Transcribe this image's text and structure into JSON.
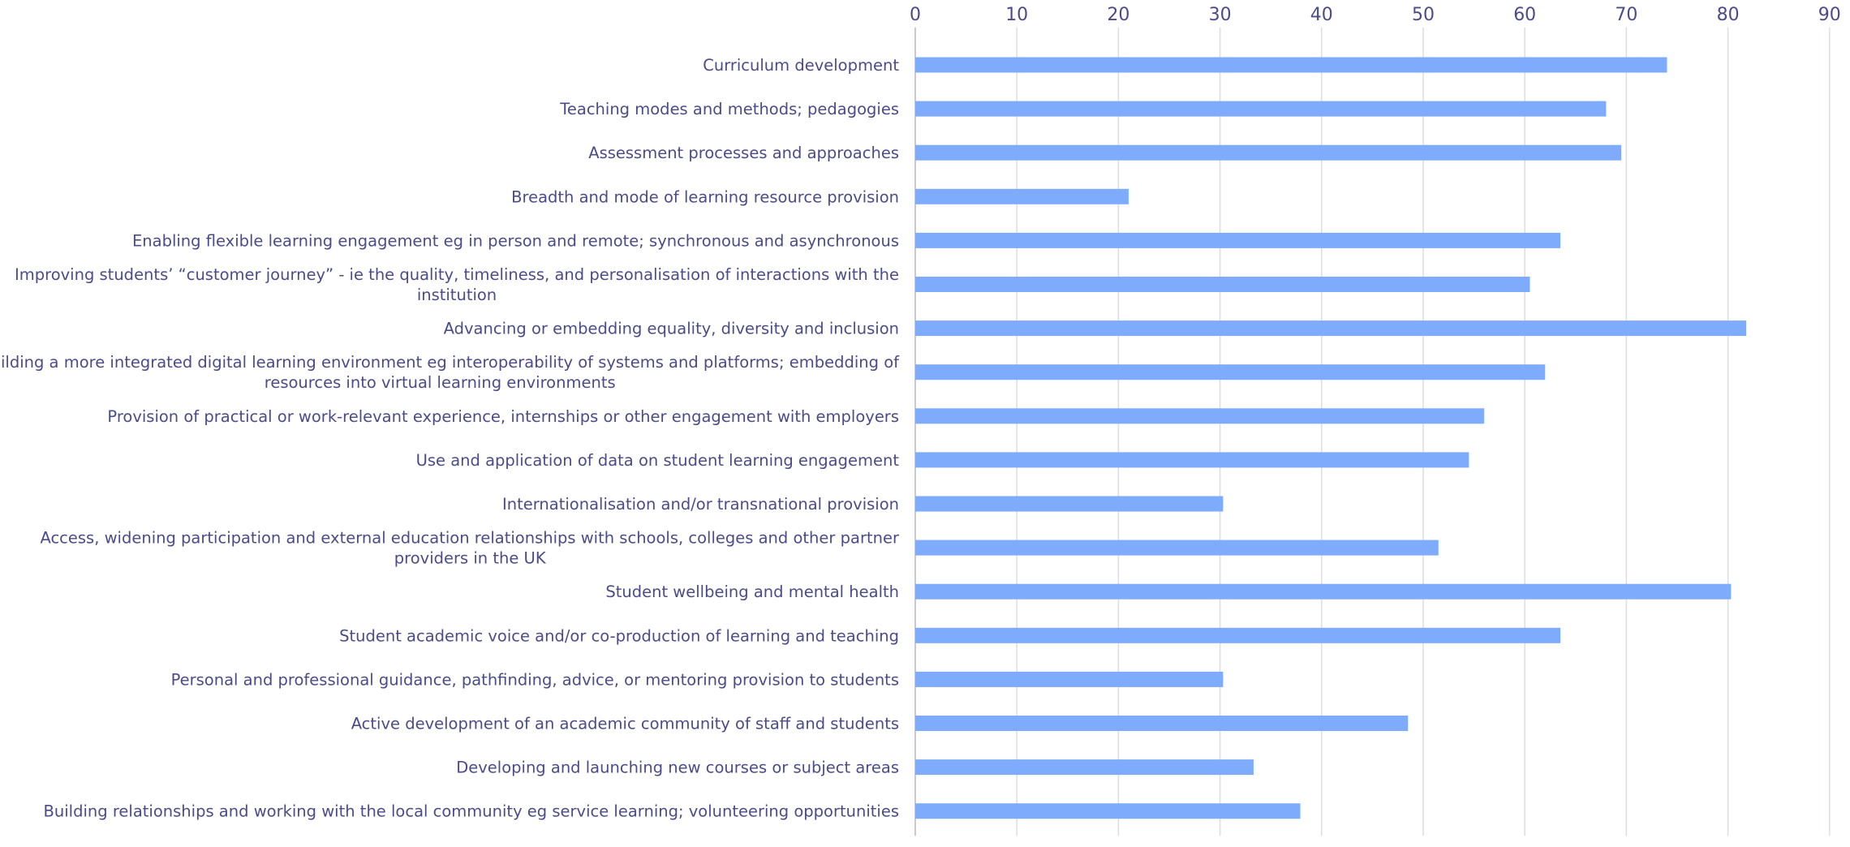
{
  "chart_data": {
    "type": "bar",
    "orientation": "horizontal",
    "title": "",
    "xlabel": "",
    "ylabel": "",
    "xlim": [
      0,
      90
    ],
    "xticks": [
      0,
      10,
      20,
      30,
      40,
      50,
      60,
      70,
      80,
      90
    ],
    "x_axis_position": "top",
    "grid": true,
    "legend": "none",
    "bar_color": "#7eabfc",
    "text_color": "#4b4b8a",
    "categories": [
      [
        "Curriculum development"
      ],
      [
        "Teaching modes and methods; pedagogies"
      ],
      [
        "Assessment processes and approaches"
      ],
      [
        "Breadth and mode of learning resource provision"
      ],
      [
        "Enabling flexible learning engagement eg in person and remote; synchronous and asynchronous"
      ],
      [
        "Improving students’ “customer journey” - ie the quality, timeliness, and personalisation of interactions with the",
        "institution"
      ],
      [
        "Advancing or embedding equality, diversity and inclusion"
      ],
      [
        "Building a more integrated digital learning environment eg interoperability of systems and platforms; embedding of",
        "resources into virtual learning environments"
      ],
      [
        "Provision of practical or work-relevant experience, internships or other engagement with employers"
      ],
      [
        "Use and application of data on student learning engagement"
      ],
      [
        "Internationalisation and/or transnational provision"
      ],
      [
        "Access, widening participation and external education relationships with schools, colleges and other partner",
        "providers in the UK"
      ],
      [
        "Student wellbeing and mental health"
      ],
      [
        "Student academic voice and/or co-production of learning and teaching"
      ],
      [
        "Personal and professional guidance, pathfinding, advice, or mentoring provision to students"
      ],
      [
        "Active development of an academic community of staff and students"
      ],
      [
        "Developing and launching new courses or subject areas"
      ],
      [
        "Building relationships and working with the local community eg service learning; volunteering opportunities"
      ]
    ],
    "values": [
      74,
      68,
      69.5,
      21,
      63.5,
      60.5,
      81.8,
      62,
      56,
      54.5,
      30.3,
      51.5,
      80.3,
      63.5,
      30.3,
      48.5,
      33.3,
      37.9
    ]
  }
}
